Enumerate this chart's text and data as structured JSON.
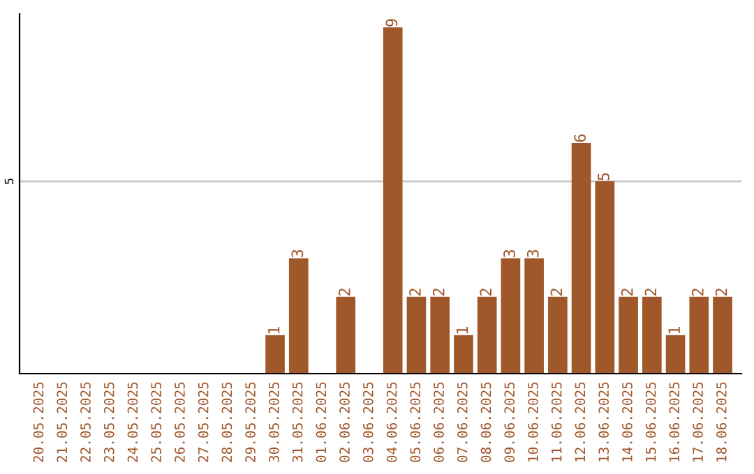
{
  "chart_data": {
    "type": "bar",
    "categories": [
      "20.05.2025",
      "21.05.2025",
      "22.05.2025",
      "23.05.2025",
      "24.05.2025",
      "25.05.2025",
      "26.05.2025",
      "27.05.2025",
      "28.05.2025",
      "29.05.2025",
      "30.05.2025",
      "31.05.2025",
      "01.06.2025",
      "02.06.2025",
      "03.06.2025",
      "04.06.2025",
      "05.06.2025",
      "06.06.2025",
      "07.06.2025",
      "08.06.2025",
      "09.06.2025",
      "10.06.2025",
      "11.06.2025",
      "12.06.2025",
      "13.06.2025",
      "14.06.2025",
      "15.06.2025",
      "16.06.2025",
      "17.06.2025",
      "18.06.2025"
    ],
    "values": [
      0,
      0,
      0,
      0,
      0,
      0,
      0,
      0,
      0,
      0,
      1,
      3,
      0,
      2,
      0,
      9,
      2,
      2,
      1,
      2,
      3,
      3,
      2,
      6,
      5,
      2,
      2,
      1,
      2,
      2
    ],
    "value_labels": [
      null,
      null,
      null,
      null,
      null,
      null,
      null,
      null,
      null,
      null,
      "1",
      "3",
      null,
      "2",
      null,
      "9",
      "2",
      "2",
      "1",
      "2",
      "3",
      "3",
      "2",
      "6",
      "5",
      "2",
      "2",
      "1",
      "2",
      "2"
    ],
    "color": "#a0572a",
    "ylim": [
      0,
      9.35
    ],
    "yticks": [
      5
    ],
    "grid": "y"
  }
}
